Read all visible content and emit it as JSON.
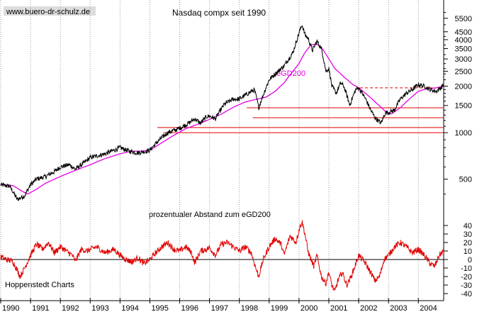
{
  "chart_data": [
    {
      "type": "line",
      "title": "Nasdaq compx seit 1990",
      "scale": "log",
      "ylim": [
        330,
        6500
      ],
      "xlim": [
        1990.0,
        2004.85
      ],
      "x_tick_labels": [
        "1990",
        "1991",
        "1992",
        "1993",
        "1994",
        "1995",
        "1996",
        "1997",
        "1998",
        "1999",
        "2000",
        "2001",
        "2002",
        "2003",
        "2004"
      ],
      "y_tick_values": [
        500,
        1000,
        1500,
        2000,
        2500,
        3000,
        3500,
        4000,
        4500,
        5500
      ],
      "y_tick_labels": [
        "500",
        "1000",
        "1500",
        "2000",
        "2500",
        "3000",
        "3500",
        "4000",
        "4500",
        "5500"
      ],
      "series": [
        {
          "name": "Nasdaq compx",
          "color": "#000000",
          "x": [
            1990.0,
            1990.3,
            1990.55,
            1990.8,
            1991.0,
            1991.2,
            1991.5,
            1991.8,
            1992.0,
            1992.3,
            1992.5,
            1992.8,
            1993.0,
            1993.5,
            1993.8,
            1994.0,
            1994.3,
            1994.6,
            1994.9,
            1995.0,
            1995.3,
            1995.6,
            1995.9,
            1996.0,
            1996.3,
            1996.5,
            1996.7,
            1996.9,
            1997.0,
            1997.2,
            1997.5,
            1997.8,
            1998.0,
            1998.3,
            1998.5,
            1998.65,
            1998.8,
            1999.0,
            1999.3,
            1999.5,
            1999.8,
            1999.95,
            2000.1,
            2000.2,
            2000.3,
            2000.45,
            2000.6,
            2000.75,
            2000.9,
            2001.0,
            2001.1,
            2001.25,
            2001.4,
            2001.5,
            2001.7,
            2001.9,
            2002.0,
            2002.2,
            2002.4,
            2002.55,
            2002.75,
            2002.9,
            2003.0,
            2003.2,
            2003.4,
            2003.6,
            2003.8,
            2004.0,
            2004.2,
            2004.4,
            2004.6,
            2004.75,
            2004.85
          ],
          "values": [
            460,
            450,
            370,
            390,
            460,
            500,
            520,
            560,
            600,
            620,
            580,
            640,
            690,
            730,
            770,
            800,
            760,
            740,
            760,
            770,
            890,
            1000,
            1050,
            1070,
            1150,
            1230,
            1150,
            1270,
            1280,
            1230,
            1530,
            1650,
            1650,
            1800,
            1900,
            1450,
            1750,
            2200,
            2500,
            2700,
            3300,
            4100,
            5000,
            4300,
            4100,
            3400,
            3900,
            3500,
            2500,
            2600,
            2000,
            1800,
            2100,
            2000,
            1500,
            1900,
            1950,
            1700,
            1400,
            1250,
            1150,
            1350,
            1350,
            1400,
            1650,
            1800,
            1900,
            2050,
            2000,
            1900,
            1850,
            1950,
            2050
          ]
        },
        {
          "name": "eGD200",
          "color": "#e400e4",
          "x": [
            1990.0,
            1990.4,
            1990.7,
            1990.9,
            1991.2,
            1991.5,
            1991.9,
            1992.3,
            1992.7,
            1993.0,
            1993.5,
            1994.0,
            1994.4,
            1994.8,
            1995.1,
            1995.4,
            1995.8,
            1996.2,
            1996.7,
            1997.0,
            1997.4,
            1997.8,
            1998.2,
            1998.6,
            1998.9,
            1999.2,
            1999.5,
            1999.8,
            2000.0,
            2000.2,
            2000.4,
            2000.6,
            2000.8,
            2001.0,
            2001.2,
            2001.5,
            2001.8,
            2002.0,
            2002.3,
            2002.6,
            2002.9,
            2003.1,
            2003.4,
            2003.7,
            2004.0,
            2004.3,
            2004.6,
            2004.85
          ],
          "values": [
            460,
            455,
            420,
            400,
            430,
            470,
            510,
            550,
            590,
            620,
            680,
            730,
            760,
            760,
            790,
            860,
            960,
            1060,
            1150,
            1220,
            1320,
            1460,
            1580,
            1650,
            1700,
            1850,
            2100,
            2500,
            2800,
            3300,
            3700,
            3750,
            3450,
            3000,
            2600,
            2300,
            2050,
            1950,
            1750,
            1550,
            1370,
            1320,
            1450,
            1650,
            1850,
            1930,
            1950,
            2000
          ]
        }
      ],
      "support_lines": {
        "color": "#e00000",
        "levels": [
          {
            "value": 1950,
            "from": 2002.05,
            "to": 2004.85,
            "style": "dashed"
          },
          {
            "value": 1450,
            "from": 1998.25,
            "to": 2004.85,
            "style": "solid"
          },
          {
            "value": 1250,
            "from": 1998.45,
            "to": 2004.85,
            "style": "solid"
          },
          {
            "value": 1080,
            "from": 1995.25,
            "to": 2004.85,
            "style": "solid"
          },
          {
            "value": 1000,
            "from": 1995.45,
            "to": 2004.85,
            "style": "solid"
          }
        ]
      },
      "annotations": [
        {
          "text": "eGD200",
          "x": 1999.0,
          "y": 2000,
          "color": "#e400e4"
        }
      ]
    },
    {
      "type": "line",
      "title": "prozentualer Abstand zum eGD200",
      "ylim": [
        -45,
        55
      ],
      "xlim": [
        1990.0,
        2004.85
      ],
      "zero_line": true,
      "y_tick_values": [
        40,
        30,
        20,
        10,
        0,
        -10,
        -20,
        -30,
        -40
      ],
      "y_tick_labels": [
        "40",
        "30",
        "20",
        "10",
        "0",
        "-10",
        "-20",
        "-30",
        "-40"
      ],
      "series": [
        {
          "name": "Abstand zum eGD200",
          "color": "#e00000",
          "x": [
            1990.0,
            1990.2,
            1990.4,
            1990.55,
            1990.65,
            1990.8,
            1991.0,
            1991.2,
            1991.4,
            1991.6,
            1991.8,
            1992.0,
            1992.2,
            1992.4,
            1992.5,
            1992.7,
            1992.9,
            1993.2,
            1993.5,
            1993.8,
            1994.0,
            1994.2,
            1994.4,
            1994.6,
            1994.8,
            1995.0,
            1995.2,
            1995.4,
            1995.6,
            1995.8,
            1996.0,
            1996.2,
            1996.4,
            1996.5,
            1996.7,
            1996.9,
            1997.0,
            1997.2,
            1997.4,
            1997.6,
            1997.8,
            1998.0,
            1998.2,
            1998.4,
            1998.55,
            1998.65,
            1998.8,
            1999.0,
            1999.2,
            1999.4,
            1999.5,
            1999.7,
            1999.9,
            2000.0,
            2000.1,
            2000.2,
            2000.3,
            2000.4,
            2000.5,
            2000.6,
            2000.75,
            2000.9,
            2001.0,
            2001.1,
            2001.2,
            2001.3,
            2001.45,
            2001.6,
            2001.75,
            2001.9,
            2002.0,
            2002.2,
            2002.4,
            2002.55,
            2002.7,
            2002.85,
            2003.0,
            2003.2,
            2003.4,
            2003.6,
            2003.8,
            2004.0,
            2004.2,
            2004.4,
            2004.55,
            2004.7,
            2004.85
          ],
          "values": [
            3,
            0,
            -2,
            -12,
            -20,
            -10,
            5,
            18,
            12,
            20,
            8,
            15,
            10,
            5,
            -2,
            12,
            10,
            15,
            8,
            12,
            5,
            0,
            -3,
            2,
            -5,
            0,
            8,
            15,
            20,
            12,
            10,
            15,
            8,
            -4,
            10,
            12,
            14,
            5,
            18,
            20,
            15,
            10,
            15,
            8,
            -10,
            -20,
            0,
            15,
            25,
            18,
            5,
            28,
            20,
            35,
            45,
            30,
            10,
            0,
            -8,
            5,
            -20,
            -28,
            -15,
            -30,
            -38,
            -25,
            -15,
            -30,
            -20,
            -5,
            5,
            -3,
            -15,
            -25,
            -20,
            0,
            5,
            15,
            20,
            15,
            8,
            12,
            5,
            -5,
            -8,
            5,
            10
          ]
        }
      ]
    }
  ],
  "labels": {
    "website": "www.buero-dr-schulz.de",
    "source": "Hoppenstedt Charts"
  },
  "colors": {
    "background": "#ffffff",
    "price_line": "#000000",
    "ema_line": "#e400e4",
    "support": "#e00000",
    "oscillator": "#e00000",
    "grid": "#9a9a9a"
  }
}
